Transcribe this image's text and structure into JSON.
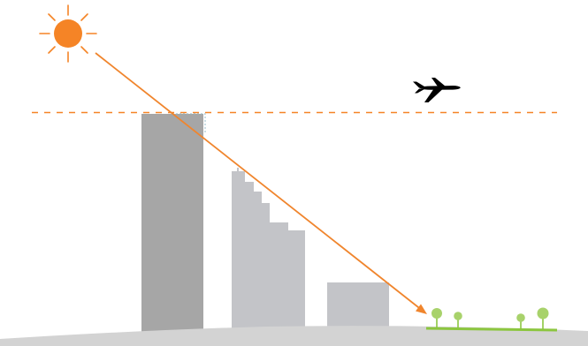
{
  "colors": {
    "background": "#ffffff",
    "sun": "#f58426",
    "sun_ray": "#f58426",
    "sun_beam": "#f0852d",
    "height_limit_line": "#f58426",
    "tall_tower": "#a6a6a6",
    "stepped_building": "#c3c4c8",
    "low_building": "#c3c4c8",
    "setback_guide": "#8fb6c4",
    "ground": "#d3d3d3",
    "grass": "#8cc63f",
    "tree_trunk": "#8cc63f",
    "tree_canopy": "#a8d26b",
    "airplane": "#000000"
  },
  "elements": {
    "sun": {
      "icon": "sun-icon"
    },
    "airplane": {
      "icon": "airplane-icon"
    },
    "height_limit": {
      "style": "dashed"
    },
    "sun_beam": {
      "arrowhead": "arrow-head"
    },
    "trees": {
      "count": 4
    }
  }
}
